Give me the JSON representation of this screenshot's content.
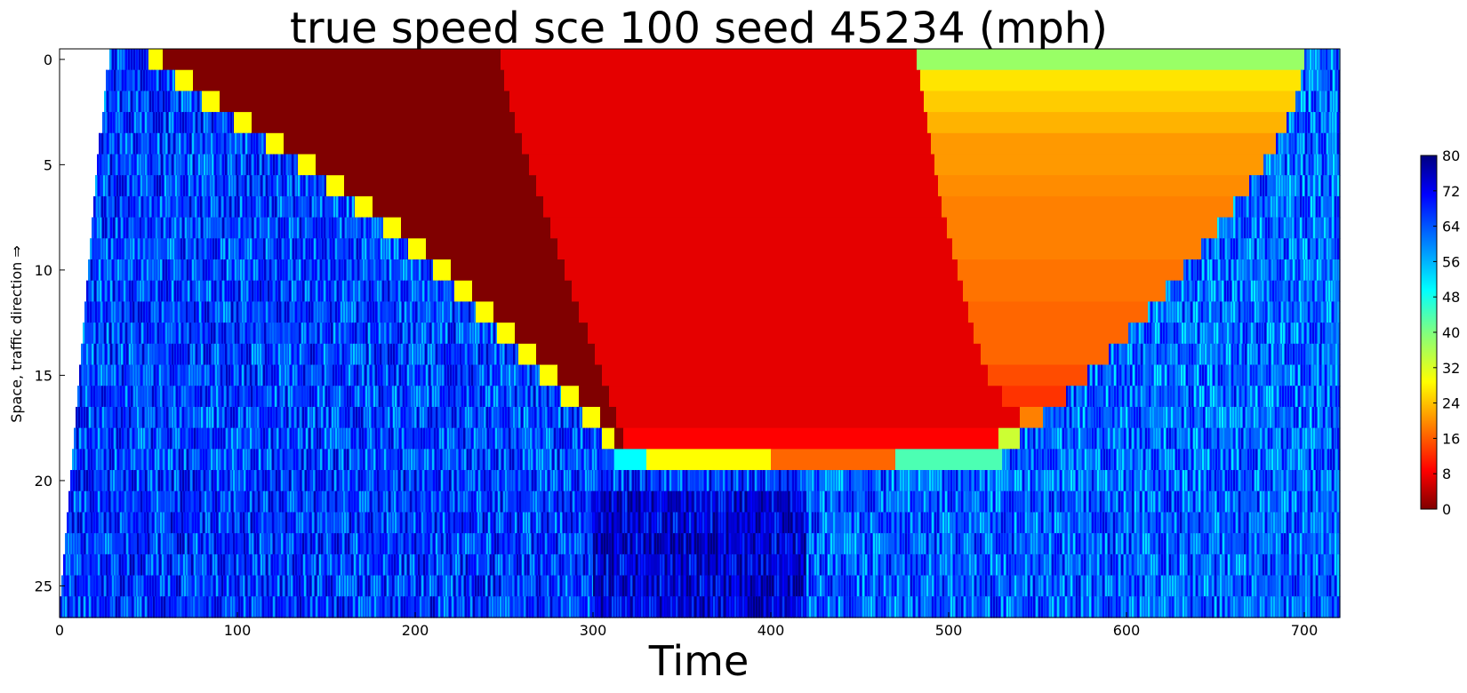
{
  "chart_data": {
    "type": "heatmap",
    "title": "true speed sce 100 seed 45234 (mph)",
    "xlabel": "Time",
    "ylabel": "Space, traffic direction ⇒",
    "xlim": [
      0,
      720
    ],
    "ylim": [
      26.5,
      -0.5
    ],
    "x_ticks": [
      0,
      100,
      200,
      300,
      400,
      500,
      600,
      700
    ],
    "y_ticks": [
      0,
      5,
      10,
      15,
      20,
      25
    ],
    "colorbar": {
      "min": 0,
      "max": 80,
      "ticks": [
        0,
        8,
        16,
        24,
        32,
        40,
        48,
        56,
        64,
        72,
        80
      ],
      "colormap": "jet"
    },
    "rows": 27,
    "row_segments": [
      {
        "row": 0,
        "segments": [
          [
            28,
            50,
            65
          ],
          [
            50,
            58,
            30
          ],
          [
            58,
            248,
            0
          ],
          [
            248,
            482,
            8
          ],
          [
            482,
            700,
            38
          ],
          [
            700,
            720,
            62
          ]
        ]
      },
      {
        "row": 1,
        "segments": [
          [
            26,
            65,
            65
          ],
          [
            65,
            75,
            30
          ],
          [
            75,
            250,
            0
          ],
          [
            250,
            484,
            8
          ],
          [
            484,
            698,
            28
          ],
          [
            698,
            720,
            62
          ]
        ]
      },
      {
        "row": 2,
        "segments": [
          [
            25,
            80,
            65
          ],
          [
            80,
            90,
            30
          ],
          [
            90,
            253,
            0
          ],
          [
            253,
            486,
            8
          ],
          [
            486,
            695,
            26
          ],
          [
            695,
            720,
            62
          ]
        ]
      },
      {
        "row": 3,
        "segments": [
          [
            24,
            98,
            65
          ],
          [
            98,
            108,
            30
          ],
          [
            108,
            256,
            0
          ],
          [
            256,
            488,
            8
          ],
          [
            488,
            690,
            24
          ],
          [
            690,
            720,
            62
          ]
        ]
      },
      {
        "row": 4,
        "segments": [
          [
            22,
            116,
            65
          ],
          [
            116,
            126,
            30
          ],
          [
            126,
            260,
            0
          ],
          [
            260,
            490,
            8
          ],
          [
            490,
            684,
            22
          ],
          [
            684,
            720,
            62
          ]
        ]
      },
      {
        "row": 5,
        "segments": [
          [
            21,
            134,
            65
          ],
          [
            134,
            144,
            30
          ],
          [
            144,
            264,
            0
          ],
          [
            264,
            492,
            8
          ],
          [
            492,
            677,
            22
          ],
          [
            677,
            720,
            62
          ]
        ]
      },
      {
        "row": 6,
        "segments": [
          [
            20,
            150,
            65
          ],
          [
            150,
            160,
            30
          ],
          [
            160,
            268,
            0
          ],
          [
            268,
            494,
            8
          ],
          [
            494,
            669,
            21
          ],
          [
            669,
            720,
            62
          ]
        ]
      },
      {
        "row": 7,
        "segments": [
          [
            19,
            166,
            65
          ],
          [
            166,
            176,
            30
          ],
          [
            176,
            272,
            0
          ],
          [
            272,
            496,
            8
          ],
          [
            496,
            660,
            20
          ],
          [
            660,
            720,
            62
          ]
        ]
      },
      {
        "row": 8,
        "segments": [
          [
            18,
            182,
            65
          ],
          [
            182,
            192,
            30
          ],
          [
            192,
            276,
            0
          ],
          [
            276,
            499,
            8
          ],
          [
            499,
            651,
            20
          ],
          [
            651,
            720,
            62
          ]
        ]
      },
      {
        "row": 9,
        "segments": [
          [
            17,
            196,
            65
          ],
          [
            196,
            206,
            30
          ],
          [
            206,
            280,
            0
          ],
          [
            280,
            502,
            8
          ],
          [
            502,
            642,
            20
          ],
          [
            642,
            720,
            62
          ]
        ]
      },
      {
        "row": 10,
        "segments": [
          [
            16,
            210,
            65
          ],
          [
            210,
            220,
            30
          ],
          [
            220,
            284,
            0
          ],
          [
            284,
            505,
            8
          ],
          [
            505,
            632,
            19
          ],
          [
            632,
            720,
            62
          ]
        ]
      },
      {
        "row": 11,
        "segments": [
          [
            15,
            222,
            65
          ],
          [
            222,
            232,
            30
          ],
          [
            232,
            288,
            0
          ],
          [
            288,
            508,
            8
          ],
          [
            508,
            622,
            19
          ],
          [
            622,
            720,
            62
          ]
        ]
      },
      {
        "row": 12,
        "segments": [
          [
            14,
            234,
            65
          ],
          [
            234,
            244,
            30
          ],
          [
            244,
            292,
            0
          ],
          [
            292,
            511,
            8
          ],
          [
            511,
            612,
            18
          ],
          [
            612,
            720,
            62
          ]
        ]
      },
      {
        "row": 13,
        "segments": [
          [
            13,
            246,
            65
          ],
          [
            246,
            256,
            30
          ],
          [
            256,
            297,
            0
          ],
          [
            297,
            514,
            8
          ],
          [
            514,
            601,
            18
          ],
          [
            601,
            720,
            62
          ]
        ]
      },
      {
        "row": 14,
        "segments": [
          [
            12,
            258,
            65
          ],
          [
            258,
            268,
            30
          ],
          [
            268,
            301,
            0
          ],
          [
            301,
            518,
            8
          ],
          [
            518,
            590,
            18
          ],
          [
            590,
            720,
            62
          ]
        ]
      },
      {
        "row": 15,
        "segments": [
          [
            11,
            270,
            65
          ],
          [
            270,
            280,
            30
          ],
          [
            280,
            305,
            0
          ],
          [
            305,
            522,
            8
          ],
          [
            522,
            578,
            16
          ],
          [
            578,
            720,
            62
          ]
        ]
      },
      {
        "row": 16,
        "segments": [
          [
            10,
            282,
            65
          ],
          [
            282,
            292,
            30
          ],
          [
            292,
            309,
            0
          ],
          [
            309,
            530,
            8
          ],
          [
            530,
            566,
            14
          ],
          [
            566,
            720,
            62
          ]
        ]
      },
      {
        "row": 17,
        "segments": [
          [
            9,
            294,
            65
          ],
          [
            294,
            304,
            30
          ],
          [
            304,
            313,
            0
          ],
          [
            313,
            540,
            8
          ],
          [
            540,
            553,
            20
          ],
          [
            553,
            720,
            62
          ]
        ]
      },
      {
        "row": 18,
        "segments": [
          [
            8,
            305,
            65
          ],
          [
            305,
            312,
            30
          ],
          [
            312,
            317,
            0
          ],
          [
            317,
            528,
            10
          ],
          [
            528,
            540,
            34
          ],
          [
            540,
            720,
            62
          ]
        ]
      },
      {
        "row": 19,
        "segments": [
          [
            7,
            312,
            65
          ],
          [
            312,
            330,
            50
          ],
          [
            330,
            400,
            30
          ],
          [
            400,
            470,
            18
          ],
          [
            470,
            530,
            44
          ],
          [
            530,
            720,
            62
          ]
        ]
      },
      {
        "row": 20,
        "segments": [
          [
            6,
            310,
            66
          ],
          [
            310,
            420,
            66
          ],
          [
            420,
            720,
            62
          ]
        ]
      },
      {
        "row": 21,
        "segments": [
          [
            5,
            300,
            66
          ],
          [
            300,
            420,
            74
          ],
          [
            420,
            720,
            63
          ]
        ]
      },
      {
        "row": 22,
        "segments": [
          [
            4,
            300,
            66
          ],
          [
            300,
            420,
            74
          ],
          [
            420,
            720,
            63
          ]
        ]
      },
      {
        "row": 23,
        "segments": [
          [
            3,
            300,
            66
          ],
          [
            300,
            420,
            74
          ],
          [
            420,
            720,
            63
          ]
        ]
      },
      {
        "row": 24,
        "segments": [
          [
            2,
            300,
            66
          ],
          [
            300,
            420,
            74
          ],
          [
            420,
            720,
            63
          ]
        ]
      },
      {
        "row": 25,
        "segments": [
          [
            1,
            300,
            66
          ],
          [
            300,
            420,
            74
          ],
          [
            420,
            720,
            63
          ]
        ]
      },
      {
        "row": 26,
        "segments": [
          [
            0,
            300,
            66
          ],
          [
            300,
            420,
            74
          ],
          [
            420,
            720,
            63
          ]
        ]
      }
    ]
  }
}
